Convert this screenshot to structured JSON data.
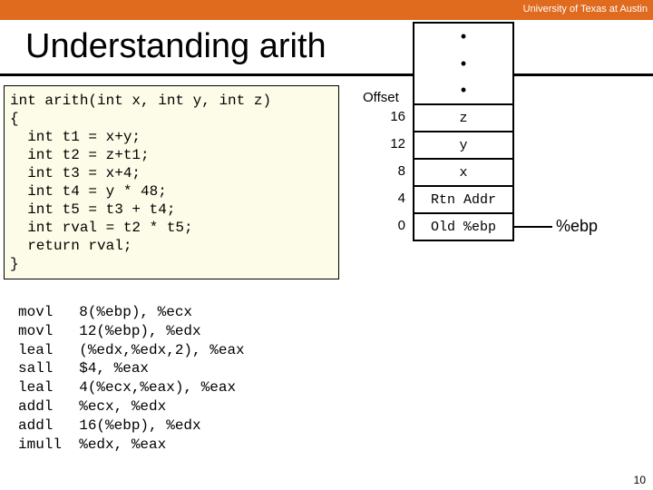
{
  "header": {
    "university": "University of Texas at Austin",
    "bar_color": "#e06a1e"
  },
  "title": "Understanding arith",
  "code": {
    "lines": [
      "int arith(int x, int y, int z)",
      "{",
      "  int t1 = x+y;",
      "  int t2 = z+t1;",
      "  int t3 = x+4;",
      "  int t4 = y * 48;",
      "  int t5 = t3 + t4;",
      "  int rval = t2 * t5;",
      "  return rval;",
      "}"
    ],
    "bg_color": "#fdfce8"
  },
  "asm": {
    "lines": [
      "movl   8(%ebp), %ecx",
      "movl   12(%ebp), %edx",
      "leal   (%edx,%edx,2), %eax",
      "sall   $4, %eax",
      "leal   4(%ecx,%eax), %eax",
      "addl   %ecx, %edx",
      "addl   16(%ebp), %edx",
      "imull  %edx, %eax"
    ]
  },
  "stack": {
    "offset_header": "Offset",
    "rows": [
      {
        "offset": "",
        "value": "•"
      },
      {
        "offset": "",
        "value": "•"
      },
      {
        "offset": "",
        "value": "•"
      },
      {
        "offset": "16",
        "value": "z"
      },
      {
        "offset": "12",
        "value": "y"
      },
      {
        "offset": "8",
        "value": "x"
      },
      {
        "offset": "4",
        "value": "Rtn Addr"
      },
      {
        "offset": "0",
        "value": "Old %ebp"
      }
    ],
    "pointer_label": "%ebp"
  },
  "page_number": "10"
}
